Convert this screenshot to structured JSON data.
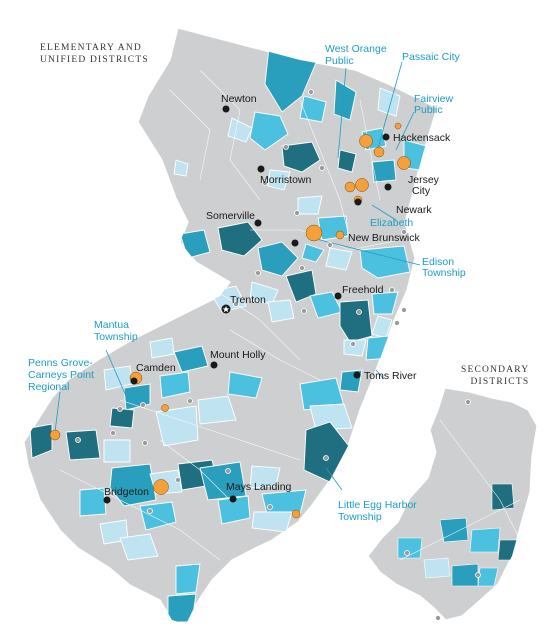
{
  "headings": {
    "primary_line1": "ELEMENTARY AND",
    "primary_line2": "UNIFIED DISTRICTS",
    "secondary_line1": "SECONDARY",
    "secondary_line2": "DISTRICTS"
  },
  "colors": {
    "land": "#cdcfd1",
    "border": "#ffffff",
    "light_blue": "#bfe3f0",
    "medium_blue": "#4cc0df",
    "teal": "#2a9fbd",
    "dark_teal": "#1f6f80",
    "orange": "#f5a03a",
    "city_dot": "#1a1a1a",
    "label_dark": "#1a1a1a",
    "label_blue": "#1b9fc6"
  },
  "labels_dark": {
    "newton": "Newton",
    "hackensack": "Hackensack",
    "morristown": "Morristown",
    "jersey_city_1": "Jersey",
    "jersey_city_2": "City",
    "newark": "Newark",
    "somerville": "Somerville",
    "new_brunswick": "New Brunswick",
    "freehold": "Freehold",
    "trenton": "Trenton",
    "mount_holly": "Mount Holly",
    "camden": "Camden",
    "toms_river": "Toms River",
    "mays_landing": "Mays Landing",
    "bridgeton": "Bridgeton"
  },
  "labels_blue": {
    "west_orange_1": "West Orange",
    "west_orange_2": "Public",
    "passaic": "Passaic City",
    "fairview_1": "Fairview",
    "fairview_2": "Public",
    "elizabeth": "Elizabeth",
    "edison_1": "Edison",
    "edison_2": "Township",
    "mantua_1": "Mantua",
    "mantua_2": "Township",
    "penns_1": "Penns Grove-",
    "penns_2": "Carneys Point",
    "penns_3": "Regional",
    "little_egg_1": "Little Egg Harbor",
    "little_egg_2": "Township"
  }
}
